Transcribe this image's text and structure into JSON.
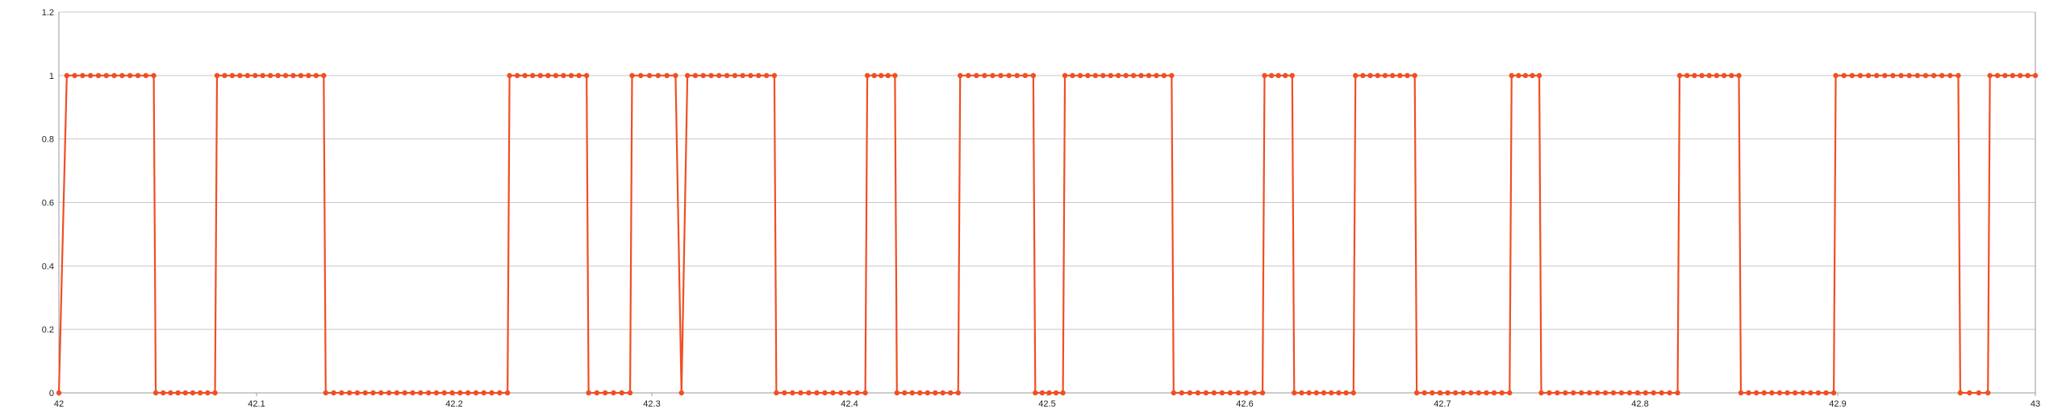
{
  "chart_data": {
    "type": "line",
    "title": "",
    "xlabel": "",
    "ylabel": "",
    "xlim": [
      42,
      43
    ],
    "ylim": [
      0,
      1.2
    ],
    "grid": true,
    "legend": "none",
    "x_ticks": [
      "42",
      "42.1",
      "42.2",
      "42.3",
      "42.4",
      "42.5",
      "42.6",
      "42.7",
      "42.8",
      "42.9",
      "43"
    ],
    "y_ticks": [
      "0",
      "0.2",
      "0.4",
      "0.6",
      "0.8",
      "1",
      "1.2"
    ],
    "series": [
      {
        "color": "#f04e23",
        "marker": "circle",
        "sample_step": 0.004,
        "segments": [
          {
            "x_start": 42.0,
            "x_end": 42.0,
            "y": 0
          },
          {
            "x_start": 42.004,
            "x_end": 42.048,
            "y": 1
          },
          {
            "x_start": 42.049,
            "x_end": 42.079,
            "y": 0
          },
          {
            "x_start": 42.08,
            "x_end": 42.134,
            "y": 1
          },
          {
            "x_start": 42.135,
            "x_end": 42.227,
            "y": 0
          },
          {
            "x_start": 42.228,
            "x_end": 42.267,
            "y": 1
          },
          {
            "x_start": 42.268,
            "x_end": 42.289,
            "y": 0
          },
          {
            "x_start": 42.29,
            "x_end": 42.312,
            "y": 1
          },
          {
            "x_start": 42.315,
            "x_end": 42.315,
            "y": 0
          },
          {
            "x_start": 42.318,
            "x_end": 42.362,
            "y": 1
          },
          {
            "x_start": 42.363,
            "x_end": 42.408,
            "y": 0
          },
          {
            "x_start": 42.409,
            "x_end": 42.423,
            "y": 1
          },
          {
            "x_start": 42.424,
            "x_end": 42.455,
            "y": 0
          },
          {
            "x_start": 42.456,
            "x_end": 42.493,
            "y": 1
          },
          {
            "x_start": 42.494,
            "x_end": 42.508,
            "y": 0
          },
          {
            "x_start": 42.509,
            "x_end": 42.563,
            "y": 1
          },
          {
            "x_start": 42.564,
            "x_end": 42.609,
            "y": 0
          },
          {
            "x_start": 42.61,
            "x_end": 42.624,
            "y": 1
          },
          {
            "x_start": 42.625,
            "x_end": 42.655,
            "y": 0
          },
          {
            "x_start": 42.656,
            "x_end": 42.686,
            "y": 1
          },
          {
            "x_start": 42.687,
            "x_end": 42.734,
            "y": 0
          },
          {
            "x_start": 42.735,
            "x_end": 42.749,
            "y": 1
          },
          {
            "x_start": 42.75,
            "x_end": 42.819,
            "y": 0
          },
          {
            "x_start": 42.82,
            "x_end": 42.85,
            "y": 1
          },
          {
            "x_start": 42.851,
            "x_end": 42.898,
            "y": 0
          },
          {
            "x_start": 42.899,
            "x_end": 42.961,
            "y": 1
          },
          {
            "x_start": 42.962,
            "x_end": 42.976,
            "y": 0
          },
          {
            "x_start": 42.977,
            "x_end": 43.0,
            "y": 1
          }
        ]
      }
    ]
  }
}
